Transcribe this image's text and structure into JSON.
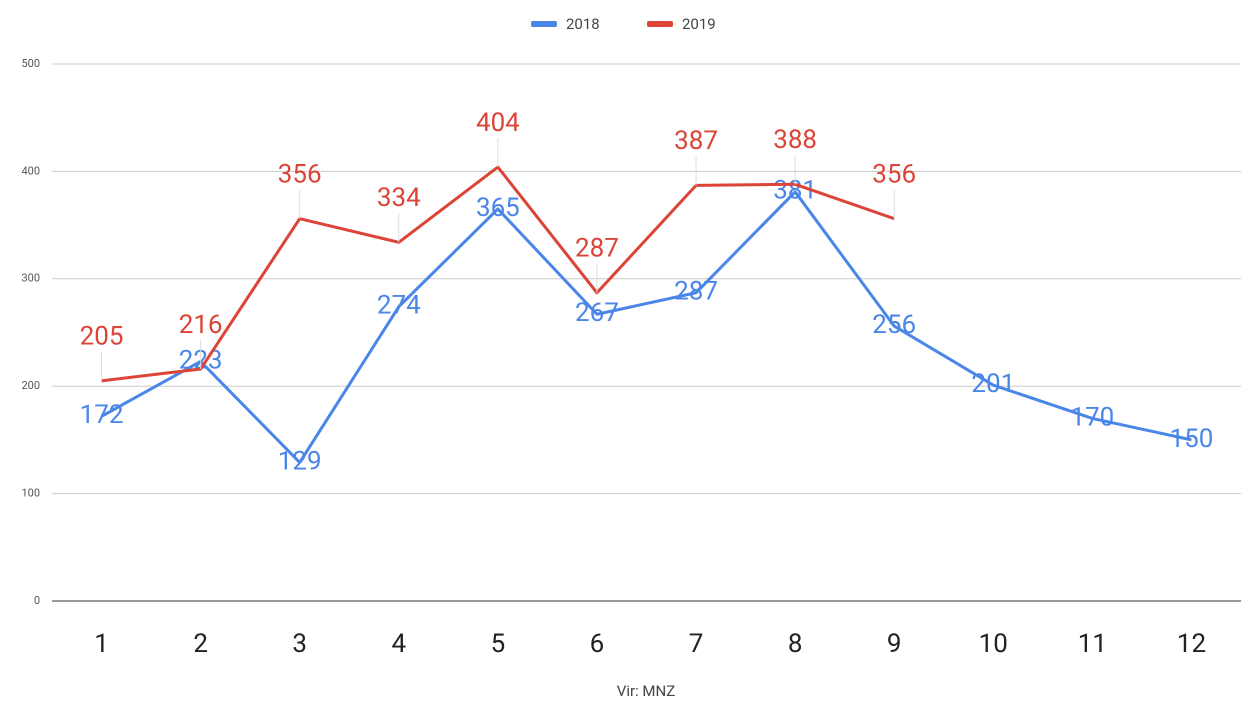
{
  "chart_data": {
    "type": "line",
    "categories": [
      "1",
      "2",
      "3",
      "4",
      "5",
      "6",
      "7",
      "8",
      "9",
      "10",
      "11",
      "12"
    ],
    "series": [
      {
        "name": "2018",
        "color": "#4a86e8",
        "values": [
          172,
          223,
          129,
          274,
          365,
          267,
          287,
          381,
          256,
          201,
          170,
          150
        ]
      },
      {
        "name": "2019",
        "color": "#db4437",
        "values": [
          205,
          216,
          356,
          334,
          404,
          287,
          387,
          388,
          356,
          null,
          null,
          null
        ]
      }
    ],
    "x_label": "Vir: MNZ",
    "ylim": [
      0,
      500
    ],
    "yticks": [
      0,
      100,
      200,
      300,
      400,
      500
    ],
    "grid": true,
    "legend": "top"
  }
}
